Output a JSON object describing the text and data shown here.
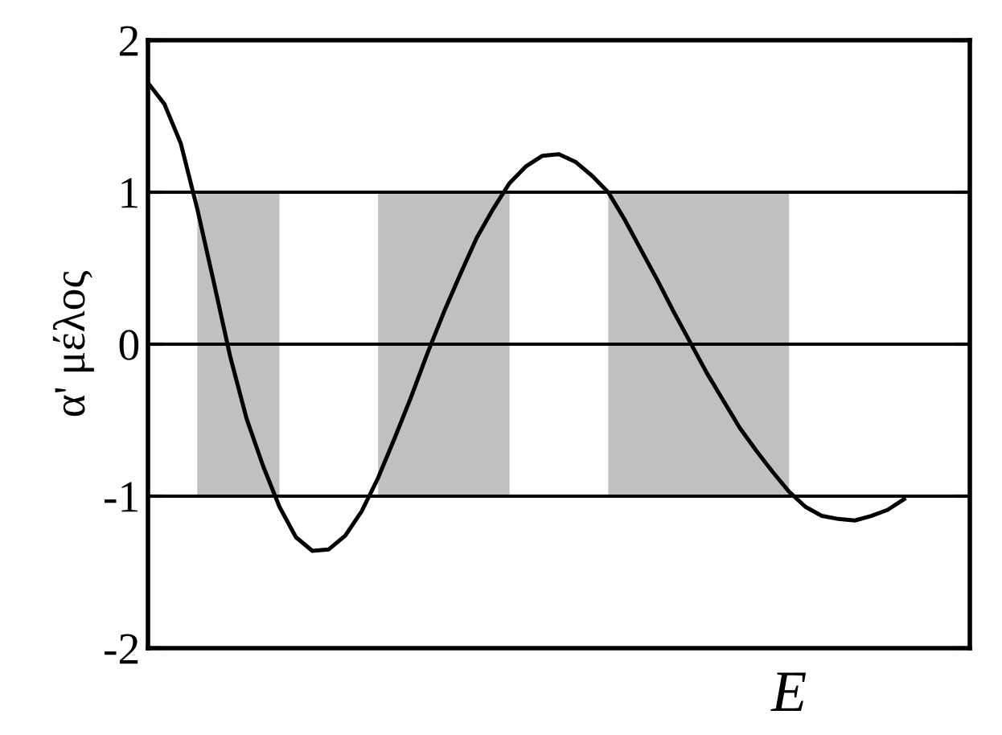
{
  "chart_data": {
    "type": "line",
    "ylabel": "α' μέλος",
    "xlabel": "E",
    "tick_labels": "y",
    "grid": false,
    "ylim": [
      -2,
      2
    ],
    "yticks": [
      -2,
      -1,
      0,
      1,
      2
    ],
    "categories": [
      null,
      null,
      null,
      null,
      null,
      null,
      null,
      null,
      null,
      null,
      null,
      null,
      null,
      null,
      null,
      null,
      null,
      null,
      null,
      null,
      null,
      null,
      null,
      null,
      null,
      null,
      null,
      null,
      null,
      null,
      null,
      null,
      null,
      null,
      null,
      null,
      null,
      null,
      null,
      null,
      null,
      null,
      null,
      null,
      null,
      null,
      null,
      null,
      null,
      null,
      null
    ],
    "series": [
      {
        "color": "#000000",
        "values": [
          1.72,
          1.58,
          1.32,
          0.89,
          0.41,
          -0.08,
          -0.49,
          -0.8,
          -1.07,
          -1.27,
          -1.36,
          -1.35,
          -1.26,
          -1.1,
          -0.88,
          -0.62,
          -0.35,
          -0.06,
          0.21,
          0.46,
          0.7,
          0.89,
          1.06,
          1.17,
          1.24,
          1.25,
          1.2,
          1.11,
          1.0,
          0.82,
          0.62,
          0.42,
          0.21,
          0.01,
          -0.19,
          -0.37,
          -0.55,
          -0.7,
          -0.84,
          -0.97,
          -1.07,
          -1.13,
          -1.15,
          -1.16,
          -1.13,
          -1.09,
          -1.02,
          null,
          null,
          null,
          null
        ],
        "lower": [
          null,
          null,
          null,
          -1,
          -1,
          -1,
          -1,
          -1,
          -1,
          null,
          null,
          null,
          null,
          null,
          -1,
          -1,
          -1,
          -1,
          -1,
          -1,
          -1,
          -1,
          -1,
          null,
          null,
          null,
          null,
          null,
          -1,
          -1,
          -1,
          -1,
          -1,
          -1,
          -1,
          -1,
          -1,
          -1,
          -1,
          -1,
          null,
          null,
          null,
          null,
          null,
          null,
          null,
          null,
          null,
          null,
          null
        ],
        "upper": [
          null,
          null,
          null,
          1,
          1,
          1,
          1,
          1,
          1,
          null,
          null,
          null,
          null,
          null,
          1,
          1,
          1,
          1,
          1,
          1,
          1,
          1,
          1,
          null,
          null,
          null,
          null,
          null,
          1,
          1,
          1,
          1,
          1,
          1,
          1,
          1,
          1,
          1,
          1,
          1,
          null,
          null,
          null,
          null,
          null,
          null,
          null,
          null,
          null,
          null,
          null
        ]
      }
    ],
    "ref_lines": [
      {
        "axis": "y",
        "value": 1,
        "color": "#000000"
      },
      {
        "axis": "y",
        "value": 0,
        "color": "#000000"
      },
      {
        "axis": "y",
        "value": -1,
        "color": "#000000"
      }
    ]
  }
}
